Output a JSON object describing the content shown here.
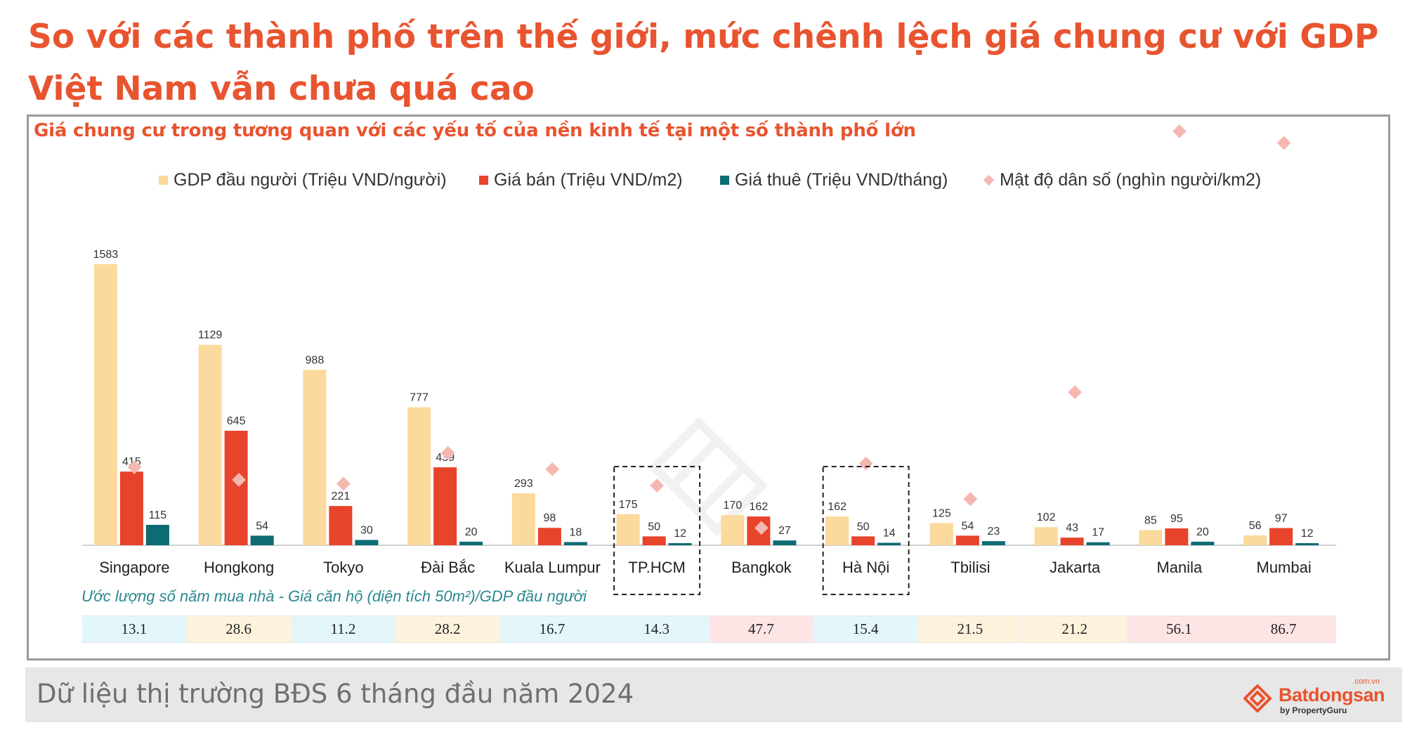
{
  "headline": "So với các thành phố trên thế giới, mức chênh lệch giá chung cư với GDP Việt Nam vẫn chưa quá cao",
  "chart_data": {
    "type": "bar",
    "title": "Giá chung cư trong tương quan với các yếu tố của nền kinh tế tại một số thành phố lớn",
    "legend_position": "top",
    "categories": [
      "Singapore",
      "Hongkong",
      "Tokyo",
      "Đài Bắc",
      "Kuala Lumpur",
      "TP.HCM",
      "Bangkok",
      "Hà Nội",
      "Tbilisi",
      "Jakarta",
      "Manila",
      "Mumbai"
    ],
    "highlighted_categories": [
      "TP.HCM",
      "Hà Nội"
    ],
    "series": [
      {
        "name": "GDP đầu người (Triệu VND/người)",
        "color": "#fcd99c",
        "values": [
          1583,
          1129,
          988,
          777,
          293,
          175,
          170,
          162,
          125,
          102,
          85,
          56
        ]
      },
      {
        "name": "Giá bán (Triệu VND/m2)",
        "color": "#e8432b",
        "values": [
          415,
          645,
          221,
          439,
          98,
          50,
          162,
          50,
          54,
          43,
          95,
          97
        ]
      },
      {
        "name": "Giá thuê (Triệu VND/tháng)",
        "color": "#0d6b73",
        "values": [
          115,
          54,
          30,
          20,
          18,
          12,
          27,
          14,
          23,
          17,
          20,
          12
        ]
      }
    ],
    "marker_series": {
      "name": "Mật độ dân số (nghìn người/km2)",
      "color": "#f5b8b1",
      "values": [
        8.1,
        6.8,
        6.4,
        9.6,
        7.9,
        6.2,
        1.8,
        8.5,
        4.8,
        15.9,
        43.0,
        41.8
      ]
    }
  },
  "ratio_table": {
    "caption": "Ước lượng số năm mua nhà - Giá căn hộ (diện tích 50m²)/GDP đầu người",
    "values": [
      "13.1",
      "28.6",
      "11.2",
      "28.2",
      "16.7",
      "14.3",
      "47.7",
      "15.4",
      "21.5",
      "21.2",
      "56.1",
      "86.7"
    ],
    "cell_colors": [
      "#e3f7fb",
      "#fdf3dc",
      "#e3f7fb",
      "#fdf3dc",
      "#e3f7fb",
      "#e3f7fb",
      "#fde5e5",
      "#e3f7fb",
      "#fdf3dc",
      "#fdf3dc",
      "#fde5e5",
      "#fde5e5"
    ]
  },
  "footer": {
    "text": "Dữ liệu thị trường BĐS 6 tháng đầu năm 2024",
    "logo_name": "Batdongsan",
    "logo_domain": ".com.vn",
    "logo_sub": "by PropertyGuru"
  }
}
